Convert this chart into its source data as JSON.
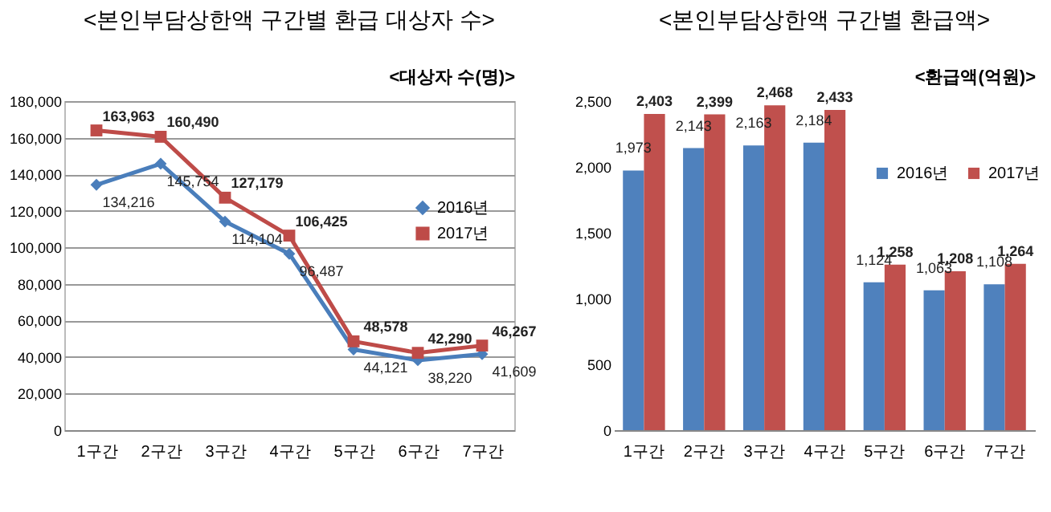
{
  "chart_data": [
    {
      "type": "line",
      "title": "<본인부담상한액 구간별 환급 대상자 수>",
      "ylabel": "<대상자 수(명)>",
      "categories": [
        "1구간",
        "2구간",
        "3구간",
        "4구간",
        "5구간",
        "6구간",
        "7구간"
      ],
      "series": [
        {
          "name": "2016년",
          "color": "#4a7ebb",
          "marker": "diamond",
          "values": [
            134216,
            145754,
            114104,
            96487,
            44121,
            38220,
            41609
          ],
          "value_labels": [
            "134,216",
            "145,754",
            "114,104",
            "96,487",
            "44,121",
            "38,220",
            "41,609"
          ]
        },
        {
          "name": "2017년",
          "color": "#be4b48",
          "marker": "square",
          "values": [
            163963,
            160490,
            127179,
            106425,
            48578,
            42290,
            46267
          ],
          "value_labels": [
            "163,963",
            "160,490",
            "127,179",
            "106,425",
            "48,578",
            "42,290",
            "46,267"
          ]
        }
      ],
      "ylim": [
        0,
        180000
      ],
      "yticks": [
        {
          "value": 0,
          "label": "0"
        },
        {
          "value": 20000,
          "label": "20,000"
        },
        {
          "value": 40000,
          "label": "40,000"
        },
        {
          "value": 60000,
          "label": "60,000"
        },
        {
          "value": 80000,
          "label": "80,000"
        },
        {
          "value": 100000,
          "label": "100,000"
        },
        {
          "value": 120000,
          "label": "120,000"
        },
        {
          "value": 140000,
          "label": "140,000"
        },
        {
          "value": 160000,
          "label": "160,000"
        },
        {
          "value": 180000,
          "label": "180,000"
        }
      ],
      "grid": "y",
      "legend": "right",
      "line_style": "solid"
    },
    {
      "type": "bar",
      "title": "<본인부담상한액 구간별 환급액>",
      "ylabel": "<환급액(억원)>",
      "categories": [
        "1구간",
        "2구간",
        "3구간",
        "4구간",
        "5구간",
        "6구간",
        "7구간"
      ],
      "series": [
        {
          "name": "2016년",
          "color": "#4f81bd",
          "values": [
            1973,
            2143,
            2163,
            2184,
            1124,
            1063,
            1108
          ],
          "value_labels": [
            "1,973",
            "2,143",
            "2,163",
            "2,184",
            "1,124",
            "1,063",
            "1,108"
          ]
        },
        {
          "name": "2017년",
          "color": "#c0504d",
          "values": [
            2403,
            2399,
            2468,
            2433,
            1258,
            1208,
            1264
          ],
          "value_labels": [
            "2,403",
            "2,399",
            "2,468",
            "2,433",
            "1,258",
            "1,208",
            "1,264"
          ]
        }
      ],
      "ylim": [
        0,
        2500
      ],
      "yticks": [
        {
          "value": 0,
          "label": "0"
        },
        {
          "value": 500,
          "label": "500"
        },
        {
          "value": 1000,
          "label": "1,000"
        },
        {
          "value": 1500,
          "label": "1,500"
        },
        {
          "value": 2000,
          "label": "2,000"
        },
        {
          "value": 2500,
          "label": "2,500"
        }
      ],
      "legend": "top right"
    }
  ]
}
